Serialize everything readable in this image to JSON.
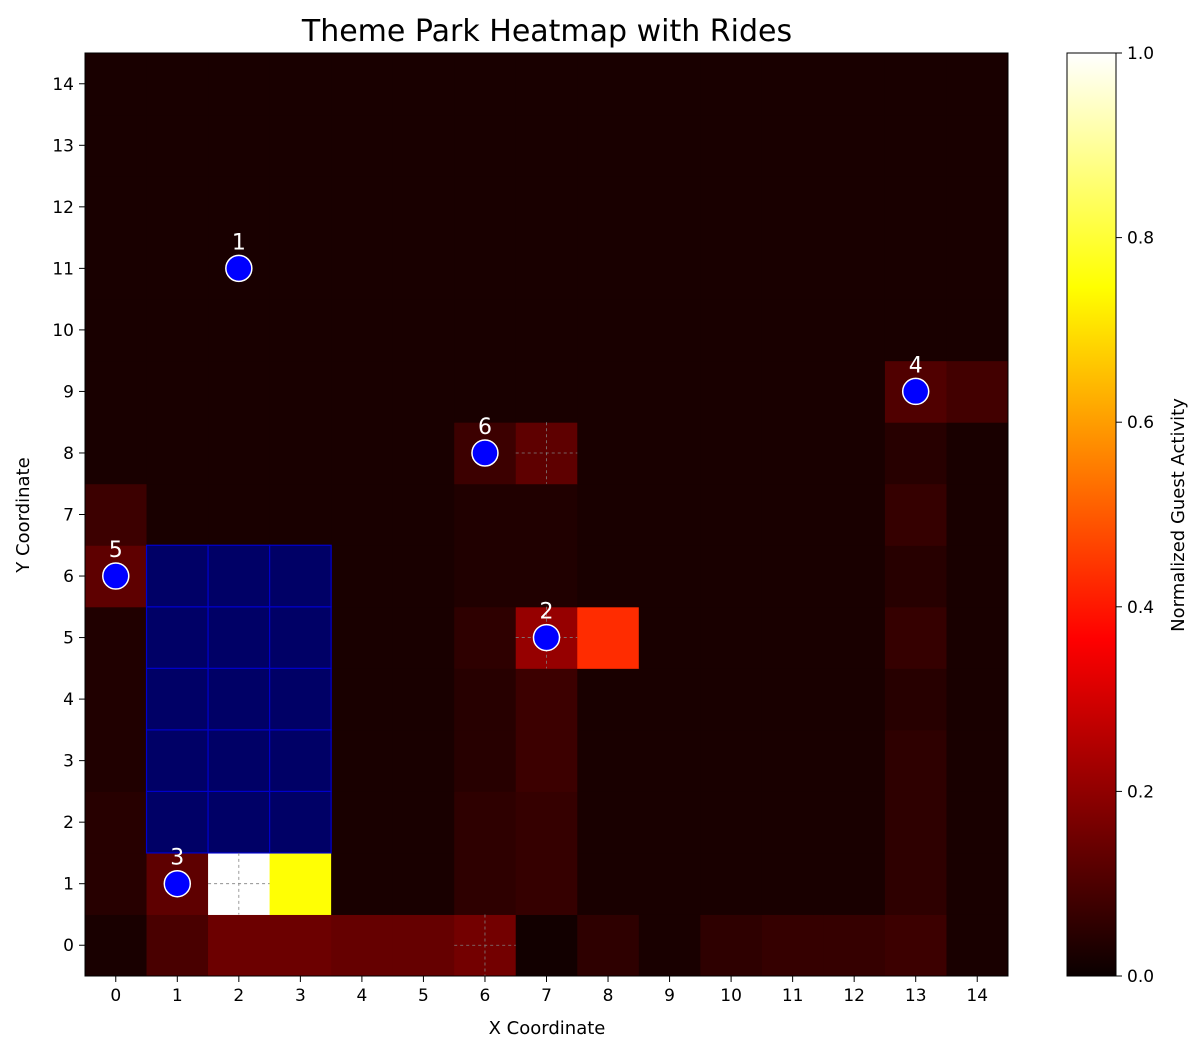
{
  "chart_data": {
    "type": "heatmap",
    "title": "Theme Park Heatmap with Rides",
    "xlabel": "X Coordinate",
    "ylabel": "Y Coordinate",
    "colorbar_label": "Normalized Guest Activity",
    "colormap": "hot",
    "x_ticks": [
      0,
      1,
      2,
      3,
      4,
      5,
      6,
      7,
      8,
      9,
      10,
      11,
      12,
      13,
      14
    ],
    "y_ticks": [
      0,
      1,
      2,
      3,
      4,
      5,
      6,
      7,
      8,
      9,
      10,
      11,
      12,
      13,
      14
    ],
    "colorbar_ticks": [
      "0.0",
      "0.2",
      "0.4",
      "0.6",
      "0.8",
      "1.0"
    ],
    "vrange": [
      0,
      1
    ],
    "grid_rows_y_from_0": [
      [
        0.02,
        0.09,
        0.14,
        0.14,
        0.13,
        0.13,
        0.15,
        0.01,
        0.05,
        0.02,
        0.05,
        0.06,
        0.06,
        0.07,
        0.02
      ],
      [
        0.04,
        0.12,
        1.0,
        0.75,
        0.02,
        0.02,
        0.05,
        0.06,
        0.02,
        0.02,
        0.02,
        0.02,
        0.02,
        0.05,
        0.02
      ],
      [
        0.04,
        0.0,
        0.0,
        0.0,
        0.02,
        0.02,
        0.05,
        0.06,
        0.02,
        0.02,
        0.02,
        0.02,
        0.02,
        0.05,
        0.02
      ],
      [
        0.03,
        0.0,
        0.0,
        0.0,
        0.02,
        0.02,
        0.04,
        0.07,
        0.02,
        0.02,
        0.02,
        0.02,
        0.02,
        0.05,
        0.02
      ],
      [
        0.03,
        0.0,
        0.0,
        0.0,
        0.02,
        0.02,
        0.04,
        0.07,
        0.02,
        0.02,
        0.02,
        0.02,
        0.02,
        0.04,
        0.02
      ],
      [
        0.03,
        0.0,
        0.0,
        0.0,
        0.02,
        0.02,
        0.05,
        0.2,
        0.43,
        0.02,
        0.02,
        0.02,
        0.02,
        0.06,
        0.02
      ],
      [
        0.12,
        0.0,
        0.0,
        0.0,
        0.02,
        0.02,
        0.03,
        0.03,
        0.02,
        0.02,
        0.02,
        0.02,
        0.02,
        0.04,
        0.02
      ],
      [
        0.07,
        0.02,
        0.02,
        0.02,
        0.02,
        0.02,
        0.03,
        0.03,
        0.02,
        0.02,
        0.02,
        0.02,
        0.02,
        0.06,
        0.02
      ],
      [
        0.02,
        0.02,
        0.02,
        0.02,
        0.02,
        0.02,
        0.07,
        0.12,
        0.02,
        0.02,
        0.02,
        0.02,
        0.02,
        0.04,
        0.02
      ],
      [
        0.02,
        0.02,
        0.02,
        0.02,
        0.02,
        0.02,
        0.02,
        0.02,
        0.02,
        0.02,
        0.02,
        0.02,
        0.02,
        0.1,
        0.08
      ],
      [
        0.02,
        0.02,
        0.02,
        0.02,
        0.02,
        0.02,
        0.02,
        0.02,
        0.02,
        0.02,
        0.02,
        0.02,
        0.02,
        0.02,
        0.02
      ],
      [
        0.02,
        0.02,
        0.02,
        0.02,
        0.02,
        0.02,
        0.02,
        0.02,
        0.02,
        0.02,
        0.02,
        0.02,
        0.02,
        0.02,
        0.02
      ],
      [
        0.02,
        0.02,
        0.02,
        0.02,
        0.02,
        0.02,
        0.02,
        0.02,
        0.02,
        0.02,
        0.02,
        0.02,
        0.02,
        0.02,
        0.02
      ],
      [
        0.02,
        0.02,
        0.02,
        0.02,
        0.02,
        0.02,
        0.02,
        0.02,
        0.02,
        0.02,
        0.02,
        0.02,
        0.02,
        0.02,
        0.02
      ],
      [
        0.02,
        0.02,
        0.02,
        0.02,
        0.02,
        0.02,
        0.02,
        0.02,
        0.02,
        0.02,
        0.02,
        0.02,
        0.02,
        0.02,
        0.02
      ]
    ],
    "water_region": {
      "x": [
        1,
        3
      ],
      "y": [
        2,
        6
      ],
      "color": "#000066"
    },
    "dashed_cells": [
      [
        2,
        1
      ],
      [
        7,
        5
      ],
      [
        6,
        0
      ],
      [
        7,
        8
      ]
    ],
    "rides": [
      {
        "id": "1",
        "x": 2,
        "y": 11
      },
      {
        "id": "2",
        "x": 7,
        "y": 5
      },
      {
        "id": "3",
        "x": 1,
        "y": 1
      },
      {
        "id": "4",
        "x": 13,
        "y": 9
      },
      {
        "id": "5",
        "x": 0,
        "y": 6
      },
      {
        "id": "6",
        "x": 6,
        "y": 8
      }
    ],
    "ride_color": "#0000ff"
  }
}
